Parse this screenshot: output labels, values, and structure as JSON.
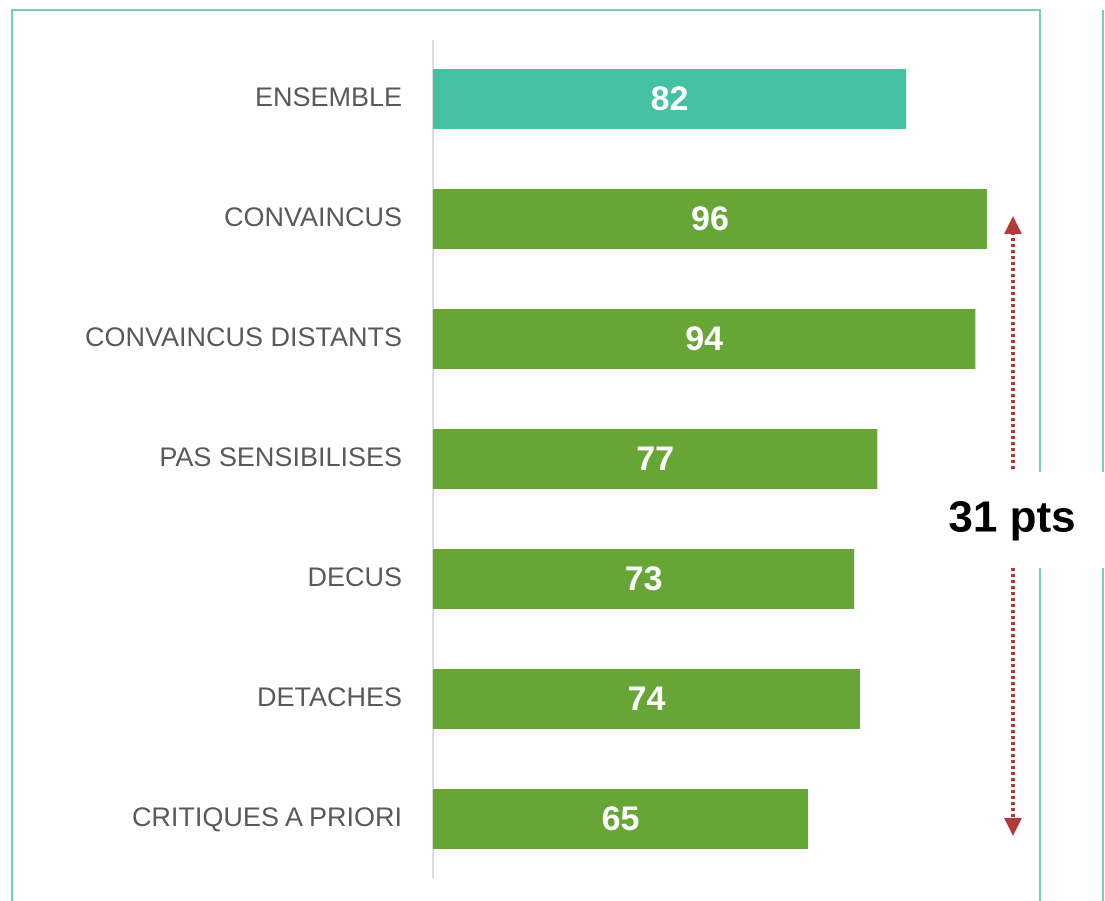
{
  "chart_data": {
    "type": "bar",
    "orientation": "horizontal",
    "categories": [
      "ENSEMBLE",
      "CONVAINCUS",
      "CONVAINCUS DISTANTS",
      "PAS SENSIBILISES",
      "DECUS",
      "DETACHES",
      "CRITIQUES A PRIORI"
    ],
    "values": [
      82,
      96,
      94,
      77,
      73,
      74,
      65
    ],
    "colors": [
      "#45c1a4",
      "#66a536",
      "#66a536",
      "#66a536",
      "#66a536",
      "#66a536",
      "#66a536"
    ],
    "xlim": [
      0,
      100
    ],
    "annotation": "31 pts"
  }
}
